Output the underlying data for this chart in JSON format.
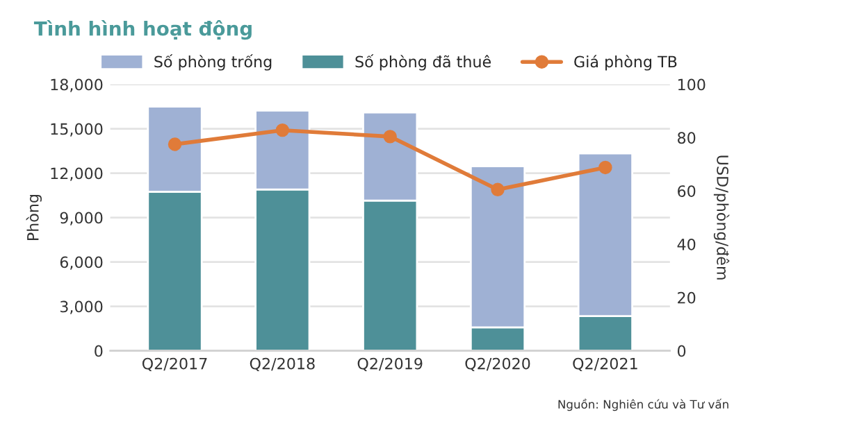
{
  "chart_data": {
    "type": "bar",
    "title": "Tình hình hoạt động",
    "ylabel": "Phòng",
    "y2label": "USD/phòng/đêm",
    "categories": [
      "Q2/2017",
      "Q2/2018",
      "Q2/2019",
      "Q2/2020",
      "Q2/2021"
    ],
    "stacked": true,
    "series": [
      {
        "name": "Số phòng đã thuê",
        "color": "#4e9098",
        "values": [
          10750,
          10900,
          10150,
          1580,
          2340
        ]
      },
      {
        "name": "Số phòng trống",
        "color": "#9fb1d4",
        "values": [
          5750,
          5330,
          5950,
          10890,
          10990
        ]
      },
      {
        "name": "Giá phòng TB",
        "type": "line",
        "axis": "y2",
        "color": "#e07b39",
        "marker": "circle",
        "values": [
          77.5,
          82.8,
          80.4,
          60.5,
          68.8
        ]
      }
    ],
    "ylim": [
      0,
      18000
    ],
    "yticks": [
      {
        "value": 0,
        "label": "0"
      },
      {
        "value": 3000,
        "label": "3,000"
      },
      {
        "value": 6000,
        "label": "6,000"
      },
      {
        "value": 9000,
        "label": "9,000"
      },
      {
        "value": 12000,
        "label": "12,000"
      },
      {
        "value": 15000,
        "label": "15,000"
      },
      {
        "value": 18000,
        "label": "18,000"
      }
    ],
    "y2lim": [
      0,
      100
    ],
    "y2ticks": [
      0,
      20,
      40,
      60,
      80,
      100
    ],
    "grid": "y",
    "legend": "top",
    "annotations": [
      "Nguồn: Nghiên cứu và Tư vấn"
    ]
  }
}
